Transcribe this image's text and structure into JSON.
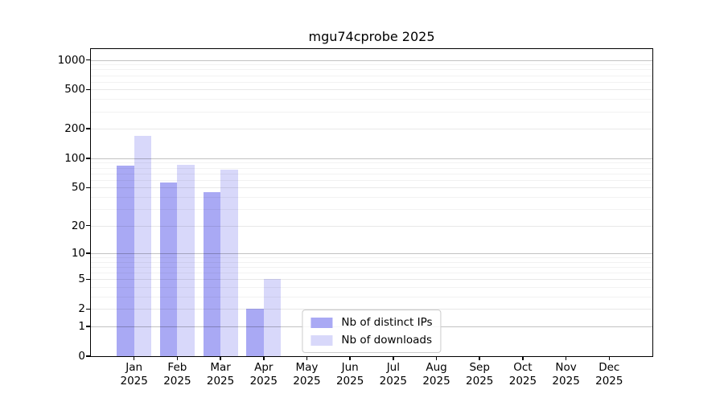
{
  "title": "mgu74cprobe 2025",
  "chart_data": {
    "type": "bar",
    "title": "mgu74cprobe 2025",
    "scale": "log1p",
    "categories": [
      "Jan",
      "Feb",
      "Mar",
      "Apr",
      "May",
      "Jun",
      "Jul",
      "Aug",
      "Sep",
      "Oct",
      "Nov",
      "Dec"
    ],
    "category_year": "2025",
    "series": [
      {
        "name": "Nb of distinct IPs",
        "color": "#a9a9f4",
        "values": [
          84,
          56,
          45,
          2,
          0,
          0,
          0,
          0,
          0,
          0,
          0,
          0
        ]
      },
      {
        "name": "Nb of downloads",
        "color": "#d8d8fa",
        "values": [
          168,
          85,
          76,
          5,
          0,
          0,
          0,
          0,
          0,
          0,
          0,
          0
        ]
      }
    ],
    "yticks": [
      0,
      1,
      2,
      5,
      10,
      20,
      50,
      100,
      200,
      500,
      1000
    ],
    "major_gridlines": [
      1,
      10,
      100,
      1000
    ],
    "minor_gridlines": [
      3,
      4,
      6,
      7,
      8,
      9,
      30,
      40,
      60,
      70,
      80,
      90,
      300,
      400,
      600,
      700,
      800,
      900
    ],
    "ylim": [
      0,
      1290
    ],
    "grid": true,
    "legend_position": "lower center"
  },
  "colors": {
    "background": "#ffffff",
    "axis": "#000000",
    "grid_major": "#c4c4c4",
    "grid_minor": "#efefef",
    "legend_border": "#cccccc"
  }
}
